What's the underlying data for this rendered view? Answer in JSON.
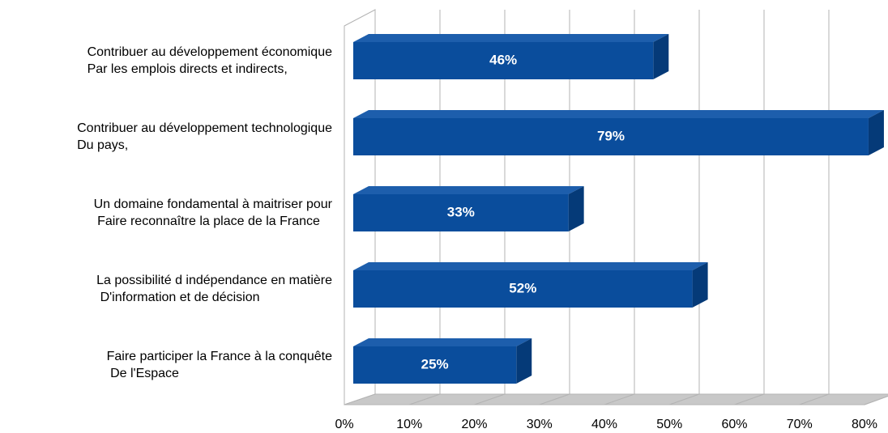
{
  "chart_data": {
    "type": "bar3d-horizontal",
    "categories": [
      "Contribuer au développement économique\nPar les emplois directs et indirects,",
      "Contribuer au développement technologique\nDu pays,",
      "Un domaine fondamental à maitriser pour\n Faire reconnaître la place de la France",
      "La possibilité d indépendance en matière\n D'information et de décision",
      "Faire participer la France à la conquête\n De l'Espace"
    ],
    "values": [
      46,
      79,
      33,
      52,
      25
    ],
    "value_labels": [
      "46%",
      "79%",
      "33%",
      "52%",
      "25%"
    ],
    "color": "#0a4d9c",
    "xlim": [
      0,
      80
    ],
    "xticks": [
      {
        "value": 0,
        "label": "0%"
      },
      {
        "value": 10,
        "label": "10%"
      },
      {
        "value": 20,
        "label": "20%"
      },
      {
        "value": 30,
        "label": "30%"
      },
      {
        "value": 40,
        "label": "40%"
      },
      {
        "value": 50,
        "label": "50%"
      },
      {
        "value": 60,
        "label": "60%"
      },
      {
        "value": 70,
        "label": "70%"
      },
      {
        "value": 80,
        "label": "80%"
      }
    ],
    "grid": true
  }
}
